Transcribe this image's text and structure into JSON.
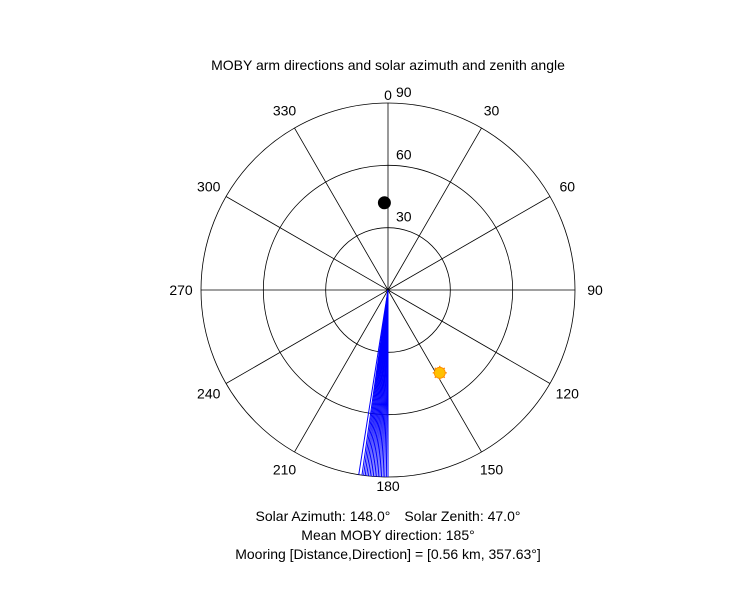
{
  "chart_data": {
    "type": "polar",
    "title": "MOBY arm directions and solar azimuth and zenith angle",
    "angular_axis": {
      "direction": "clockwise",
      "zero_location": "top",
      "ticks": [
        0,
        30,
        60,
        90,
        120,
        150,
        180,
        210,
        240,
        270,
        300,
        330
      ],
      "tick_labels": [
        "0",
        "30",
        "60",
        "90",
        "120",
        "150",
        "180",
        "210",
        "240",
        "270",
        "300",
        "330"
      ]
    },
    "radial_axis": {
      "range": [
        0,
        90
      ],
      "ticks": [
        30,
        60,
        90
      ],
      "tick_labels": [
        "30",
        "60",
        "90"
      ]
    },
    "grid": true,
    "series": [
      {
        "type": "arm-lines",
        "color": "#0000ff",
        "radius": 90,
        "angles_deg": [
          180.0,
          180.5,
          181.0,
          181.5,
          182.0,
          182.5,
          183.0,
          183.5,
          184.0,
          184.5,
          185.0,
          185.5,
          186.0,
          186.5,
          187.0,
          187.5,
          188.0,
          189.0
        ]
      },
      {
        "type": "point",
        "label": "solar position",
        "azimuth_deg": 148.0,
        "zenith_deg": 47.0,
        "color": "#ffc000",
        "edge_color": "#ff8a00",
        "marker": "sun"
      },
      {
        "type": "point",
        "label": "mooring",
        "azimuth_deg": 357.63,
        "zenith_deg": 42.0,
        "color": "#000000",
        "marker": "circle"
      }
    ]
  },
  "footer": {
    "solar_azimuth_text": "Solar Azimuth: 148.0°",
    "solar_zenith_text": "Solar Zenith: 47.0°",
    "mean_direction_text": "Mean MOBY direction: 185°",
    "mooring_text": "Mooring [Distance,Direction] = [0.56 km, 357.63°]"
  }
}
